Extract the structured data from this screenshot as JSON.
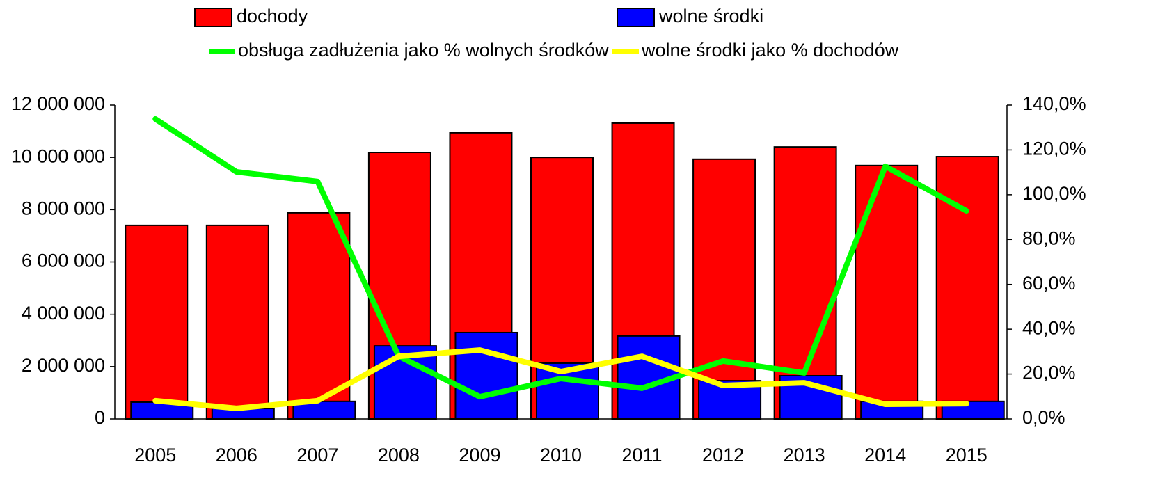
{
  "chart_data": {
    "type": "bar",
    "categories": [
      "2005",
      "2006",
      "2007",
      "2008",
      "2009",
      "2010",
      "2011",
      "2012",
      "2013",
      "2014",
      "2015"
    ],
    "series": [
      {
        "name": "dochody",
        "color": "#ff0000",
        "type": "bar",
        "values": [
          7400000,
          7400000,
          7880000,
          10190000,
          10940000,
          10000000,
          11310000,
          9930000,
          10400000,
          9690000,
          10030000
        ]
      },
      {
        "name": "wolne środki",
        "color": "#0000ff",
        "type": "bar",
        "values": [
          640000,
          400000,
          670000,
          2790000,
          3300000,
          2130000,
          3170000,
          1460000,
          1650000,
          670000,
          670000
        ]
      },
      {
        "name": "obsługa zadłużenia jako % wolnych środków",
        "color": "#00ff00",
        "type": "line",
        "axis": "y2",
        "values": [
          133.8,
          110.2,
          105.9,
          27.9,
          9.9,
          18.0,
          13.7,
          25.8,
          20.5,
          112.7,
          92.8
        ]
      },
      {
        "name": "wolne środki jako % dochodów",
        "color": "#ffff00",
        "type": "line",
        "axis": "y2",
        "values": [
          8.1,
          4.7,
          8.1,
          27.9,
          30.7,
          21.1,
          27.9,
          14.9,
          16.1,
          6.5,
          6.8
        ]
      }
    ],
    "ylim": [
      0,
      12000000
    ],
    "yticks": [
      0,
      {
        "value": 2000000,
        "label": "2 000 000"
      },
      {
        "value": 4000000,
        "label": "4 000 000"
      },
      {
        "value": 6000000,
        "label": "6 000 000"
      },
      {
        "value": 8000000,
        "label": "8 000 000"
      },
      {
        "value": 10000000,
        "label": "10 000 000"
      },
      {
        "value": 12000000,
        "label": "12 000 000"
      }
    ],
    "y2lim": [
      0,
      140
    ],
    "y2ticks": [
      {
        "value": 0,
        "label": "0,0%"
      },
      {
        "value": 20,
        "label": "20,0%"
      },
      {
        "value": 40,
        "label": "40,0%"
      },
      {
        "value": 60,
        "label": "60,0%"
      },
      {
        "value": 80,
        "label": "80,0%"
      },
      {
        "value": 100,
        "label": "100,0%"
      },
      {
        "value": 120,
        "label": "120,0%"
      },
      {
        "value": 140,
        "label": "140,0%"
      }
    ],
    "legend": "top"
  }
}
